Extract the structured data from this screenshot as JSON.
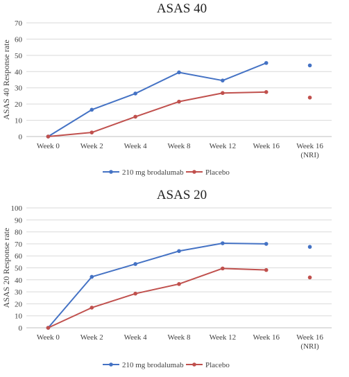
{
  "chart_data": [
    {
      "type": "line",
      "title": "ASAS 40",
      "ylabel": "ASAS 40 Response rate",
      "xlabel": "",
      "categories": [
        "Week 0",
        "Week 2",
        "Week 4",
        "Week 8",
        "Week 12",
        "Week 16",
        "Week 16\n(NRI)"
      ],
      "ylim": [
        0,
        70
      ],
      "yticks": [
        0,
        10,
        20,
        30,
        40,
        50,
        60,
        70
      ],
      "grid": true,
      "legend": "bottom",
      "series": [
        {
          "name": "210 mg brodalumab",
          "color": "#4472c4",
          "values": [
            0,
            16.5,
            26.5,
            39.5,
            34.5,
            45.3,
            null
          ],
          "nri": 43.8
        },
        {
          "name": "Placebo",
          "color": "#c0504d",
          "values": [
            0,
            2.5,
            12.2,
            21.5,
            26.8,
            27.4,
            null
          ],
          "nri": 24.0
        }
      ]
    },
    {
      "type": "line",
      "title": "ASAS 20",
      "ylabel": "ASAS 20 Response rate",
      "xlabel": "",
      "categories": [
        "Week 0",
        "Week 2",
        "Week 4",
        "Week 8",
        "Week 12",
        "Week 16",
        "Week 16\n(NRI)"
      ],
      "ylim": [
        0,
        100
      ],
      "yticks": [
        0,
        10,
        20,
        30,
        40,
        50,
        60,
        70,
        80,
        90,
        100
      ],
      "grid": true,
      "legend": "bottom",
      "series": [
        {
          "name": "210 mg brodalumab",
          "color": "#4472c4",
          "values": [
            0,
            42.5,
            53.2,
            64.0,
            70.5,
            70.0,
            null
          ],
          "nri": 67.5
        },
        {
          "name": "Placebo",
          "color": "#c0504d",
          "values": [
            0,
            16.8,
            28.5,
            36.5,
            49.5,
            48.2,
            null
          ],
          "nri": 42.0
        }
      ]
    }
  ]
}
